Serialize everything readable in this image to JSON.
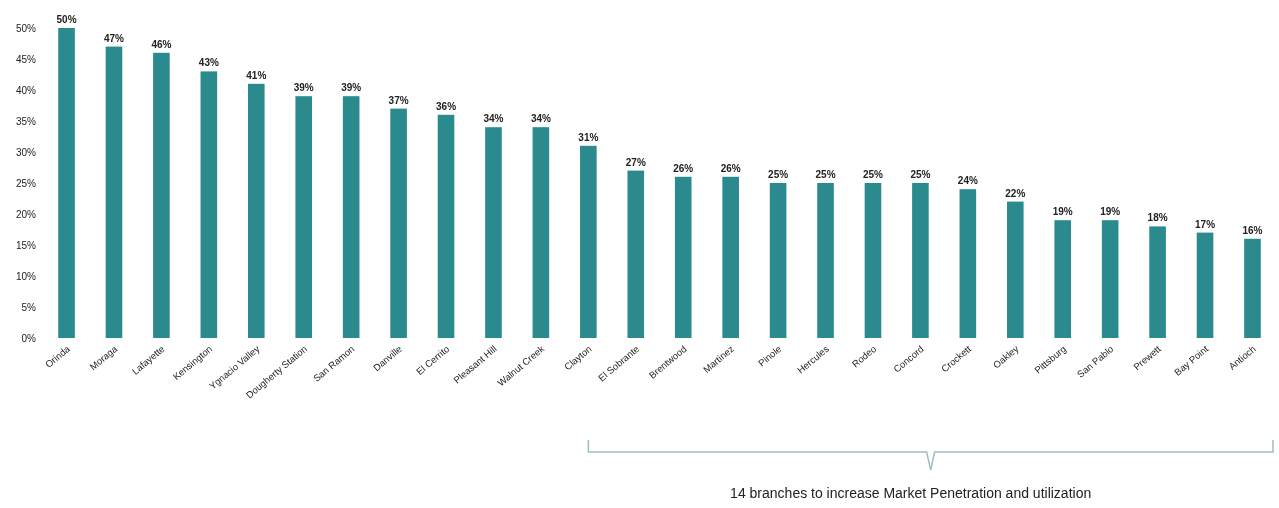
{
  "chart_data": {
    "type": "bar",
    "categories": [
      "Orinda",
      "Moraga",
      "Lafayette",
      "Kensington",
      "Ygnacio Valley",
      "Dougherty Station",
      "San Ramon",
      "Danville",
      "El Cerrito",
      "Pleasant Hill",
      "Walnut Creek",
      "Clayton",
      "El Sobrante",
      "Brentwood",
      "Martinez",
      "Pinole",
      "Hercules",
      "Rodeo",
      "Concord",
      "Crockett",
      "Oakley",
      "Pittsburg",
      "San Pablo",
      "Prewett",
      "Bay Point",
      "Antioch"
    ],
    "values": [
      50,
      47,
      46,
      43,
      41,
      39,
      39,
      37,
      36,
      34,
      34,
      31,
      27,
      26,
      26,
      25,
      25,
      25,
      25,
      24,
      22,
      19,
      19,
      18,
      17,
      16
    ],
    "color": "#2b8a8e",
    "value_labels": [
      "50%",
      "47%",
      "46%",
      "43%",
      "41%",
      "39%",
      "39%",
      "37%",
      "36%",
      "34%",
      "34%",
      "31%",
      "27%",
      "26%",
      "26%",
      "25%",
      "25%",
      "25%",
      "25%",
      "24%",
      "22%",
      "19%",
      "19%",
      "18%",
      "17%",
      "16%"
    ],
    "ylim": [
      0,
      50
    ],
    "yticks": [
      {
        "value": 0,
        "label": "0%"
      },
      {
        "value": 5,
        "label": "5%"
      },
      {
        "value": 10,
        "label": "10%"
      },
      {
        "value": 15,
        "label": "15%"
      },
      {
        "value": 20,
        "label": "20%"
      },
      {
        "value": 25,
        "label": "25%"
      },
      {
        "value": 30,
        "label": "30%"
      },
      {
        "value": 35,
        "label": "35%"
      },
      {
        "value": 40,
        "label": "40%"
      },
      {
        "value": 45,
        "label": "45%"
      },
      {
        "value": 50,
        "label": "50%"
      }
    ],
    "grid": false,
    "annotations": [
      "14 branches to increase Market Penetration and utilization"
    ]
  }
}
